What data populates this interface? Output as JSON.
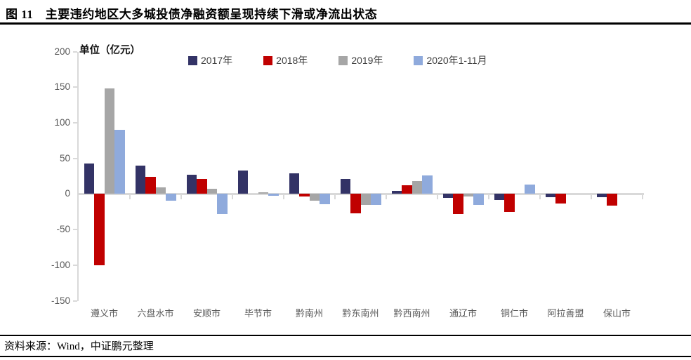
{
  "header": {
    "title": "图 11　主要违约地区大多城投债净融资额呈现持续下滑或净流出状态"
  },
  "chart": {
    "unit_label": "单位（亿元）"
  },
  "footer": {
    "source": "资料来源：Wind，中证鹏元整理"
  },
  "colors": {
    "axis": "#D9D9D9",
    "tick_text": "#595959",
    "series_2017": "#333366",
    "series_2018": "#C00000",
    "series_2019": "#A6A6A6",
    "series_2020": "#8FAADC",
    "rule": "#000000"
  },
  "chart_data": {
    "type": "bar",
    "title": "主要违约地区大多城投债净融资额呈现持续下滑或净流出状态",
    "unit": "亿元",
    "categories": [
      "遵义市",
      "六盘水市",
      "安顺市",
      "毕节市",
      "黔南州",
      "黔东南州",
      "黔西南州",
      "通辽市",
      "铜仁市",
      "阿拉善盟",
      "保山市"
    ],
    "series": [
      {
        "name": "2017年",
        "color": "#333366",
        "values": [
          43,
          40,
          27,
          33,
          29,
          21,
          4,
          -6,
          -9,
          -5,
          -5
        ]
      },
      {
        "name": "2018年",
        "color": "#C00000",
        "values": [
          -100,
          24,
          21,
          0,
          -4,
          -27,
          12,
          -28,
          -25,
          -13,
          -16
        ]
      },
      {
        "name": "2019年",
        "color": "#A6A6A6",
        "values": [
          148,
          9,
          7,
          2,
          -10,
          -15,
          18,
          -4,
          0,
          0,
          0
        ]
      },
      {
        "name": "2020年1-11月",
        "color": "#8FAADC",
        "values": [
          90,
          -10,
          -28,
          -3,
          -14,
          -15,
          26,
          -15,
          13,
          0,
          0
        ]
      }
    ],
    "ylim": [
      -150,
      200
    ],
    "yticks": [
      200,
      150,
      100,
      50,
      0,
      -50,
      -100,
      -150
    ],
    "legend_position": "top",
    "grid": false
  }
}
